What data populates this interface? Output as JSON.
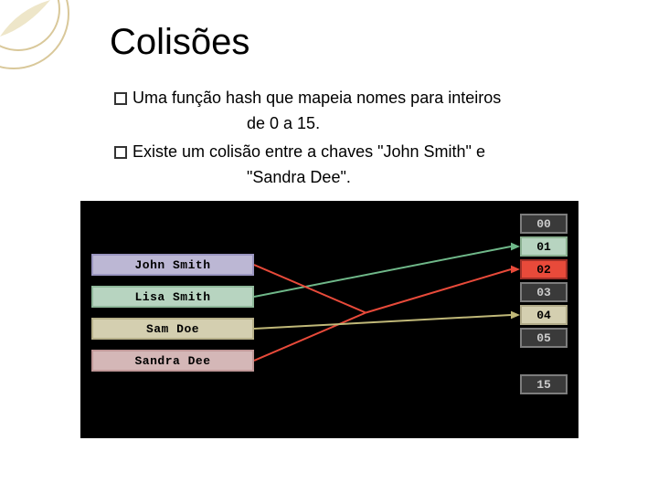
{
  "decoration": {
    "circle_stroke": "#d9c89a",
    "leaf_fill": "#eee6c9"
  },
  "title": "Colisões",
  "title_fontsize": 40,
  "bullets": [
    {
      "lead": "Uma",
      "rest": "função hash que mapeia nomes para inteiros",
      "cont": "de 0 a 15."
    },
    {
      "lead": "Existe",
      "rest": "um colisão entre a chaves \"John Smith\" e",
      "cont": "\"Sandra Dee\"."
    }
  ],
  "diagram": {
    "background": "#000000",
    "keys": [
      {
        "label": "John Smith",
        "bg": "#bcb7d4",
        "border": "#9a95c0"
      },
      {
        "label": "Lisa Smith",
        "bg": "#b7d4c0",
        "border": "#8fb89a"
      },
      {
        "label": "Sam Doe",
        "bg": "#d4cfb0",
        "border": "#b8b18a"
      },
      {
        "label": "Sandra Dee",
        "bg": "#d4b7b7",
        "border": "#c09898"
      }
    ],
    "slots": [
      {
        "label": "00",
        "bg": "#3a3a3a",
        "fg": "#cccccc",
        "border": "#7d7d7d"
      },
      {
        "label": "01",
        "bg": "#b7d4c0",
        "fg": "#000000",
        "border": "#8ab090",
        "collision": false
      },
      {
        "label": "02",
        "bg": "#e84a3a",
        "fg": "#000000",
        "border": "#a03028",
        "collision": true
      },
      {
        "label": "03",
        "bg": "#3a3a3a",
        "fg": "#cccccc",
        "border": "#7d7d7d"
      },
      {
        "label": "04",
        "bg": "#d4cfb0",
        "fg": "#000000",
        "border": "#b0aa88",
        "collision": false
      },
      {
        "label": "05",
        "bg": "#3a3a3a",
        "fg": "#cccccc",
        "border": "#7d7d7d"
      },
      {
        "label": "15",
        "bg": "#3a3a3a",
        "fg": "#cccccc",
        "border": "#7d7d7d",
        "gap_before": true
      }
    ],
    "lines": [
      {
        "from_key": 0,
        "to_slot": 2,
        "color": "#e84a3a",
        "width": 2
      },
      {
        "from_key": 1,
        "to_slot": 1,
        "color": "#6fb889",
        "width": 2
      },
      {
        "from_key": 2,
        "to_slot": 4,
        "color": "#c0b878",
        "width": 2
      },
      {
        "from_key": 3,
        "to_slot": 2,
        "color": "#e84a3a",
        "width": 2
      }
    ],
    "line_merge_x": 0.42,
    "arrow_size": 7
  }
}
